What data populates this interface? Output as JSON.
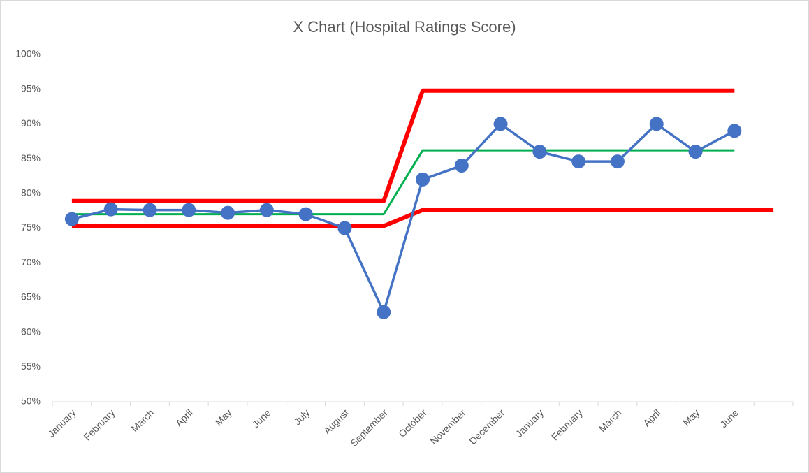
{
  "chart_data": {
    "type": "line",
    "title": "X Chart (Hospital Ratings Score)",
    "categories": [
      "January",
      "February",
      "March",
      "April",
      "May",
      "June",
      "July",
      "August",
      "September",
      "October",
      "November",
      "December",
      "January",
      "February",
      "March",
      "April",
      "May",
      "June",
      null
    ],
    "series": [
      {
        "color": "#ff0000",
        "values": [
          78.9,
          78.9,
          78.9,
          78.9,
          78.9,
          78.9,
          78.9,
          78.9,
          78.9,
          94.8,
          94.8,
          94.8,
          94.8,
          94.8,
          94.8,
          94.8,
          94.8,
          94.8,
          null
        ]
      },
      {
        "color": "#ff0000",
        "values": [
          75.3,
          75.3,
          75.3,
          75.3,
          75.3,
          75.3,
          75.3,
          75.3,
          75.3,
          77.6,
          77.6,
          77.6,
          77.6,
          77.6,
          77.6,
          77.6,
          77.6,
          77.6,
          77.6
        ]
      },
      {
        "color": "#00b050",
        "values": [
          77.0,
          77.0,
          77.0,
          77.0,
          77.0,
          77.0,
          77.0,
          77.0,
          77.0,
          86.2,
          86.2,
          86.2,
          86.2,
          86.2,
          86.2,
          86.2,
          86.2,
          86.2,
          null
        ]
      },
      {
        "color": "#4472c4",
        "markers": true,
        "values": [
          76.3,
          77.7,
          77.6,
          77.6,
          77.2,
          77.6,
          77.0,
          75.0,
          62.9,
          82.0,
          84.0,
          90.0,
          86.0,
          84.6,
          84.6,
          90.0,
          86.0,
          89.0,
          null
        ]
      }
    ],
    "ylim": [
      50,
      100
    ],
    "yticks": [
      {
        "value": 50,
        "label": "50%"
      },
      {
        "value": 55,
        "label": "55%"
      },
      {
        "value": 60,
        "label": "60%"
      },
      {
        "value": 65,
        "label": "65%"
      },
      {
        "value": 70,
        "label": "70%"
      },
      {
        "value": 75,
        "label": "75%"
      },
      {
        "value": 80,
        "label": "80%"
      },
      {
        "value": 85,
        "label": "85%"
      },
      {
        "value": 90,
        "label": "90%"
      },
      {
        "value": 95,
        "label": "95%"
      },
      {
        "value": 100,
        "label": "100%"
      }
    ],
    "grid": false
  }
}
